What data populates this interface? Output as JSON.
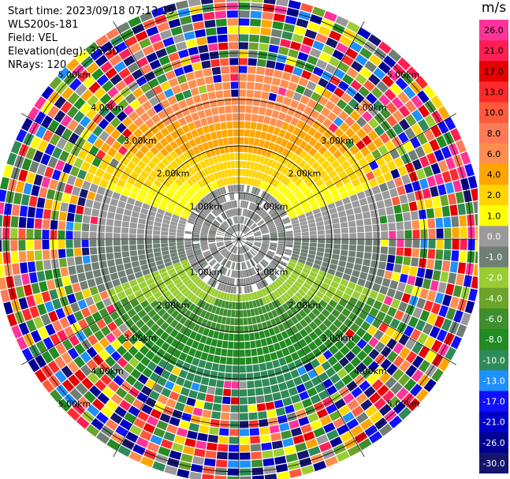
{
  "info": {
    "start_time": "Start time: 2023/09/18 07:13:19",
    "station": "WLS200s-181",
    "field": "Field: VEL",
    "elevation": "Elevation(deg): 35.30",
    "nrays": "NRays: 120"
  },
  "chart_data": {
    "type": "ppi_scan",
    "field": "VEL",
    "units": "m/s",
    "elevation_deg": 35.3,
    "n_rays": 120,
    "range_rings_km": [
      1.0,
      2.0,
      3.0,
      4.0,
      5.0
    ],
    "range_ring_labels": [
      "1.00km",
      "2.00km",
      "3.00km",
      "4.00km",
      "5.00km"
    ],
    "max_range_km": 5.4,
    "velocity_pattern": {
      "near_zero_gray_inner_km": 1.0,
      "north_sector": "positive velocities (2 to 8 m/s, orange/yellow)",
      "south_sector": "negative velocities (-2 to -8 m/s, green)",
      "outer_ranges": "noise (random colors)"
    },
    "colorbar": {
      "unit": "m/s",
      "ticks": [
        "26.0",
        "21.0",
        "17.0",
        "13.0",
        "10.0",
        "8.0",
        "6.0",
        "4.0",
        "2.0",
        "1.0",
        "0.0",
        "-1.0",
        "-2.0",
        "-4.0",
        "-6.0",
        "-8.0",
        "-10.0",
        "-13.0",
        "-17.0",
        "-21.0",
        "-26.0",
        "-30.0"
      ],
      "colors": [
        "#ff3399",
        "#ff1f55",
        "#e60000",
        "#ff2a2a",
        "#ff5a3c",
        "#ff7a55",
        "#ff8f50",
        "#ffa500",
        "#ffd400",
        "#ffff00",
        "#9a9a9a",
        "#6f7f73",
        "#9acd32",
        "#6aa52a",
        "#3f8f2f",
        "#228b22",
        "#2e8b57",
        "#1e90ff",
        "#1010ff",
        "#0000cd",
        "#000090",
        "#15156e"
      ]
    }
  }
}
